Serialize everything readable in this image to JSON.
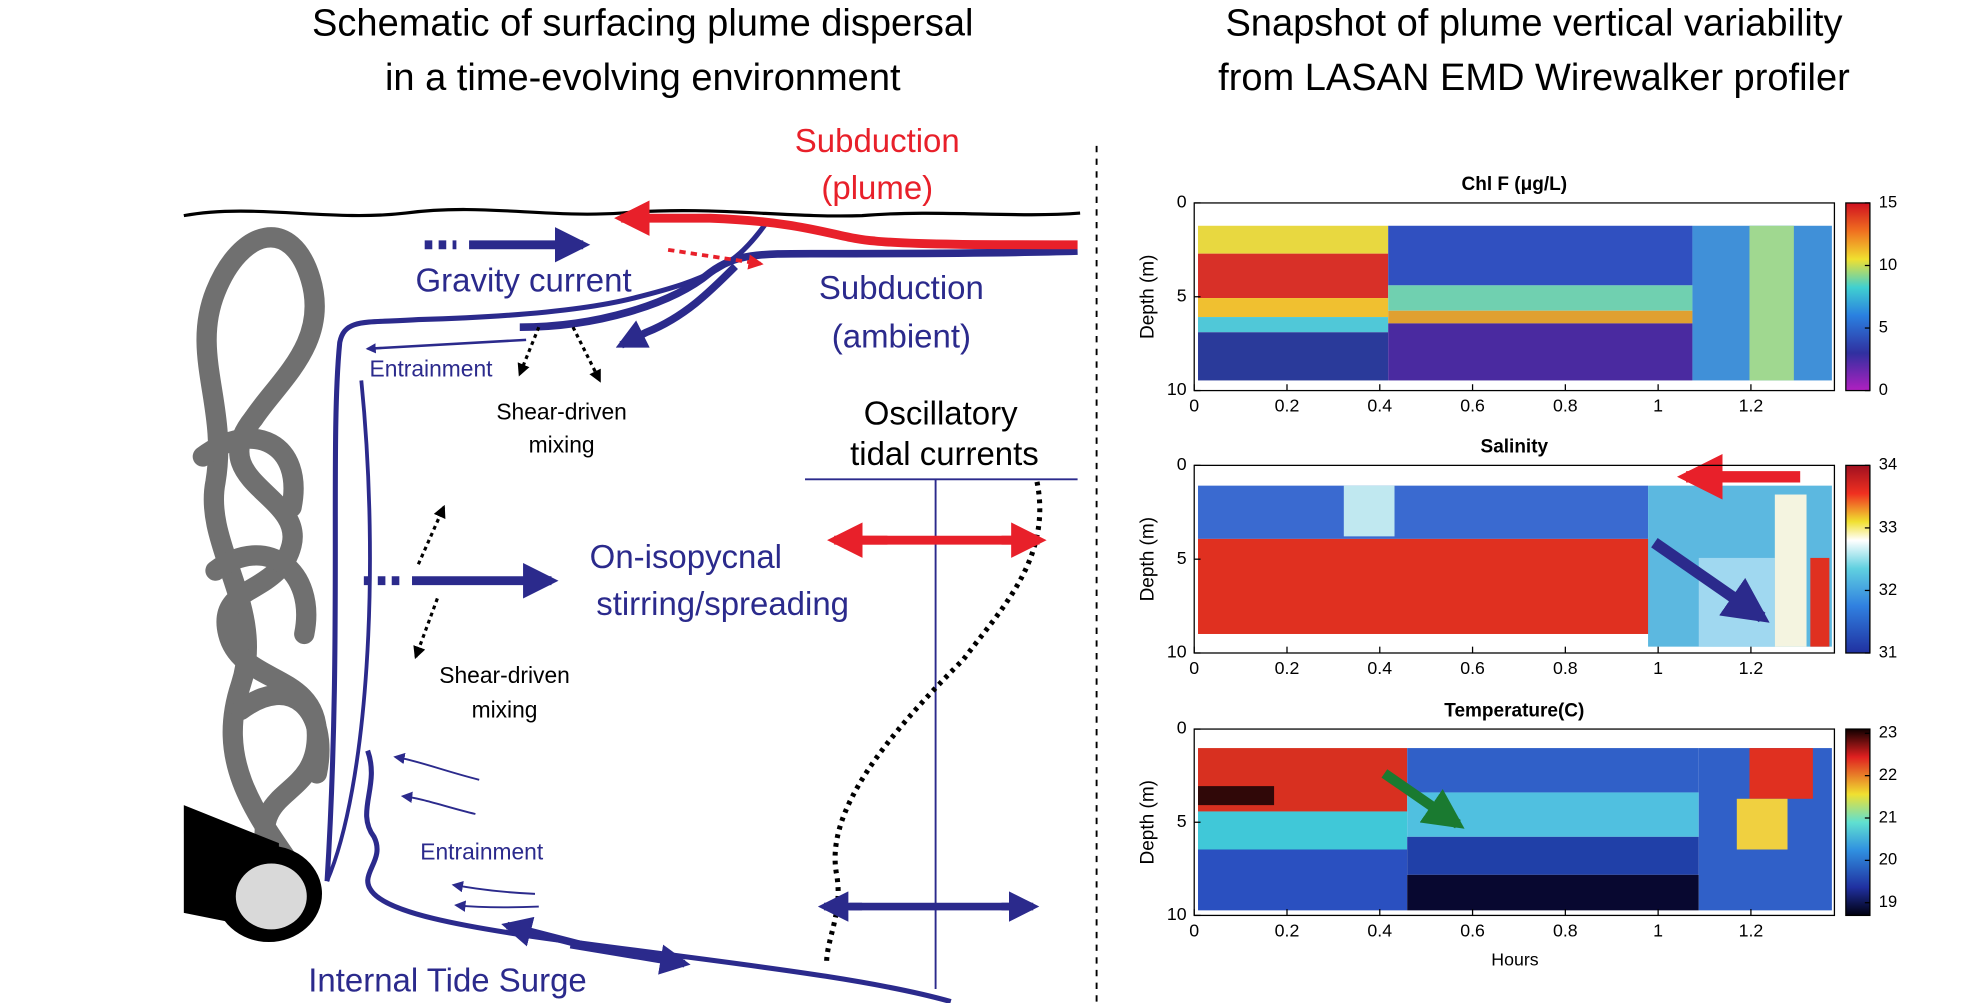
{
  "left": {
    "title": [
      "Schematic of surfacing plume dispersal",
      "in a time-evolving environment"
    ],
    "subduction_plume": [
      "Subduction",
      "(plume)"
    ],
    "gravity_current": "Gravity current",
    "subduction_ambient": [
      "Subduction",
      "(ambient)"
    ],
    "entrainment_top": "Entrainment",
    "shear_mixing_top": [
      "Shear-driven",
      "mixing"
    ],
    "tidal": [
      "Oscillatory",
      "tidal currents"
    ],
    "isopycnal": [
      "On-isopycnal",
      "stirring/spreading"
    ],
    "shear_mixing_mid": [
      "Shear-driven",
      "mixing"
    ],
    "entrainment_bottom": "Entrainment",
    "internal_tide": "Internal Tide Surge"
  },
  "right": {
    "title": [
      "Snapshot of plume vertical variability",
      "from LASAN EMD Wirewalker profiler"
    ],
    "xlabel": "Hours",
    "panels": [
      {
        "title": "Chl F (μg/L)",
        "ylabel": "Depth (m)",
        "xlim": [
          0,
          1.38
        ],
        "ylim": [
          0,
          10
        ],
        "xticks": [
          0,
          0.2,
          0.4,
          0.6,
          0.8,
          1,
          1.2
        ],
        "yticks": [
          0,
          5,
          10
        ],
        "clim": [
          0,
          15
        ],
        "cticks": [
          0,
          5,
          10,
          15
        ]
      },
      {
        "title": "Salinity",
        "ylabel": "Depth (m)",
        "xlim": [
          0,
          1.38
        ],
        "ylim": [
          0,
          10
        ],
        "xticks": [
          0,
          0.2,
          0.4,
          0.6,
          0.8,
          1,
          1.2
        ],
        "yticks": [
          0,
          5,
          10
        ],
        "clim": [
          31,
          34
        ],
        "cticks": [
          31,
          32,
          33,
          34
        ]
      },
      {
        "title": "Temperature(C)",
        "ylabel": "Depth (m)",
        "xlim": [
          0,
          1.38
        ],
        "ylim": [
          0,
          10
        ],
        "xticks": [
          0,
          0.2,
          0.4,
          0.6,
          0.8,
          1,
          1.2
        ],
        "yticks": [
          0,
          5,
          10
        ],
        "clim": [
          18.7,
          23.1
        ],
        "cticks": [
          19,
          20,
          21,
          22,
          23
        ]
      }
    ]
  }
}
